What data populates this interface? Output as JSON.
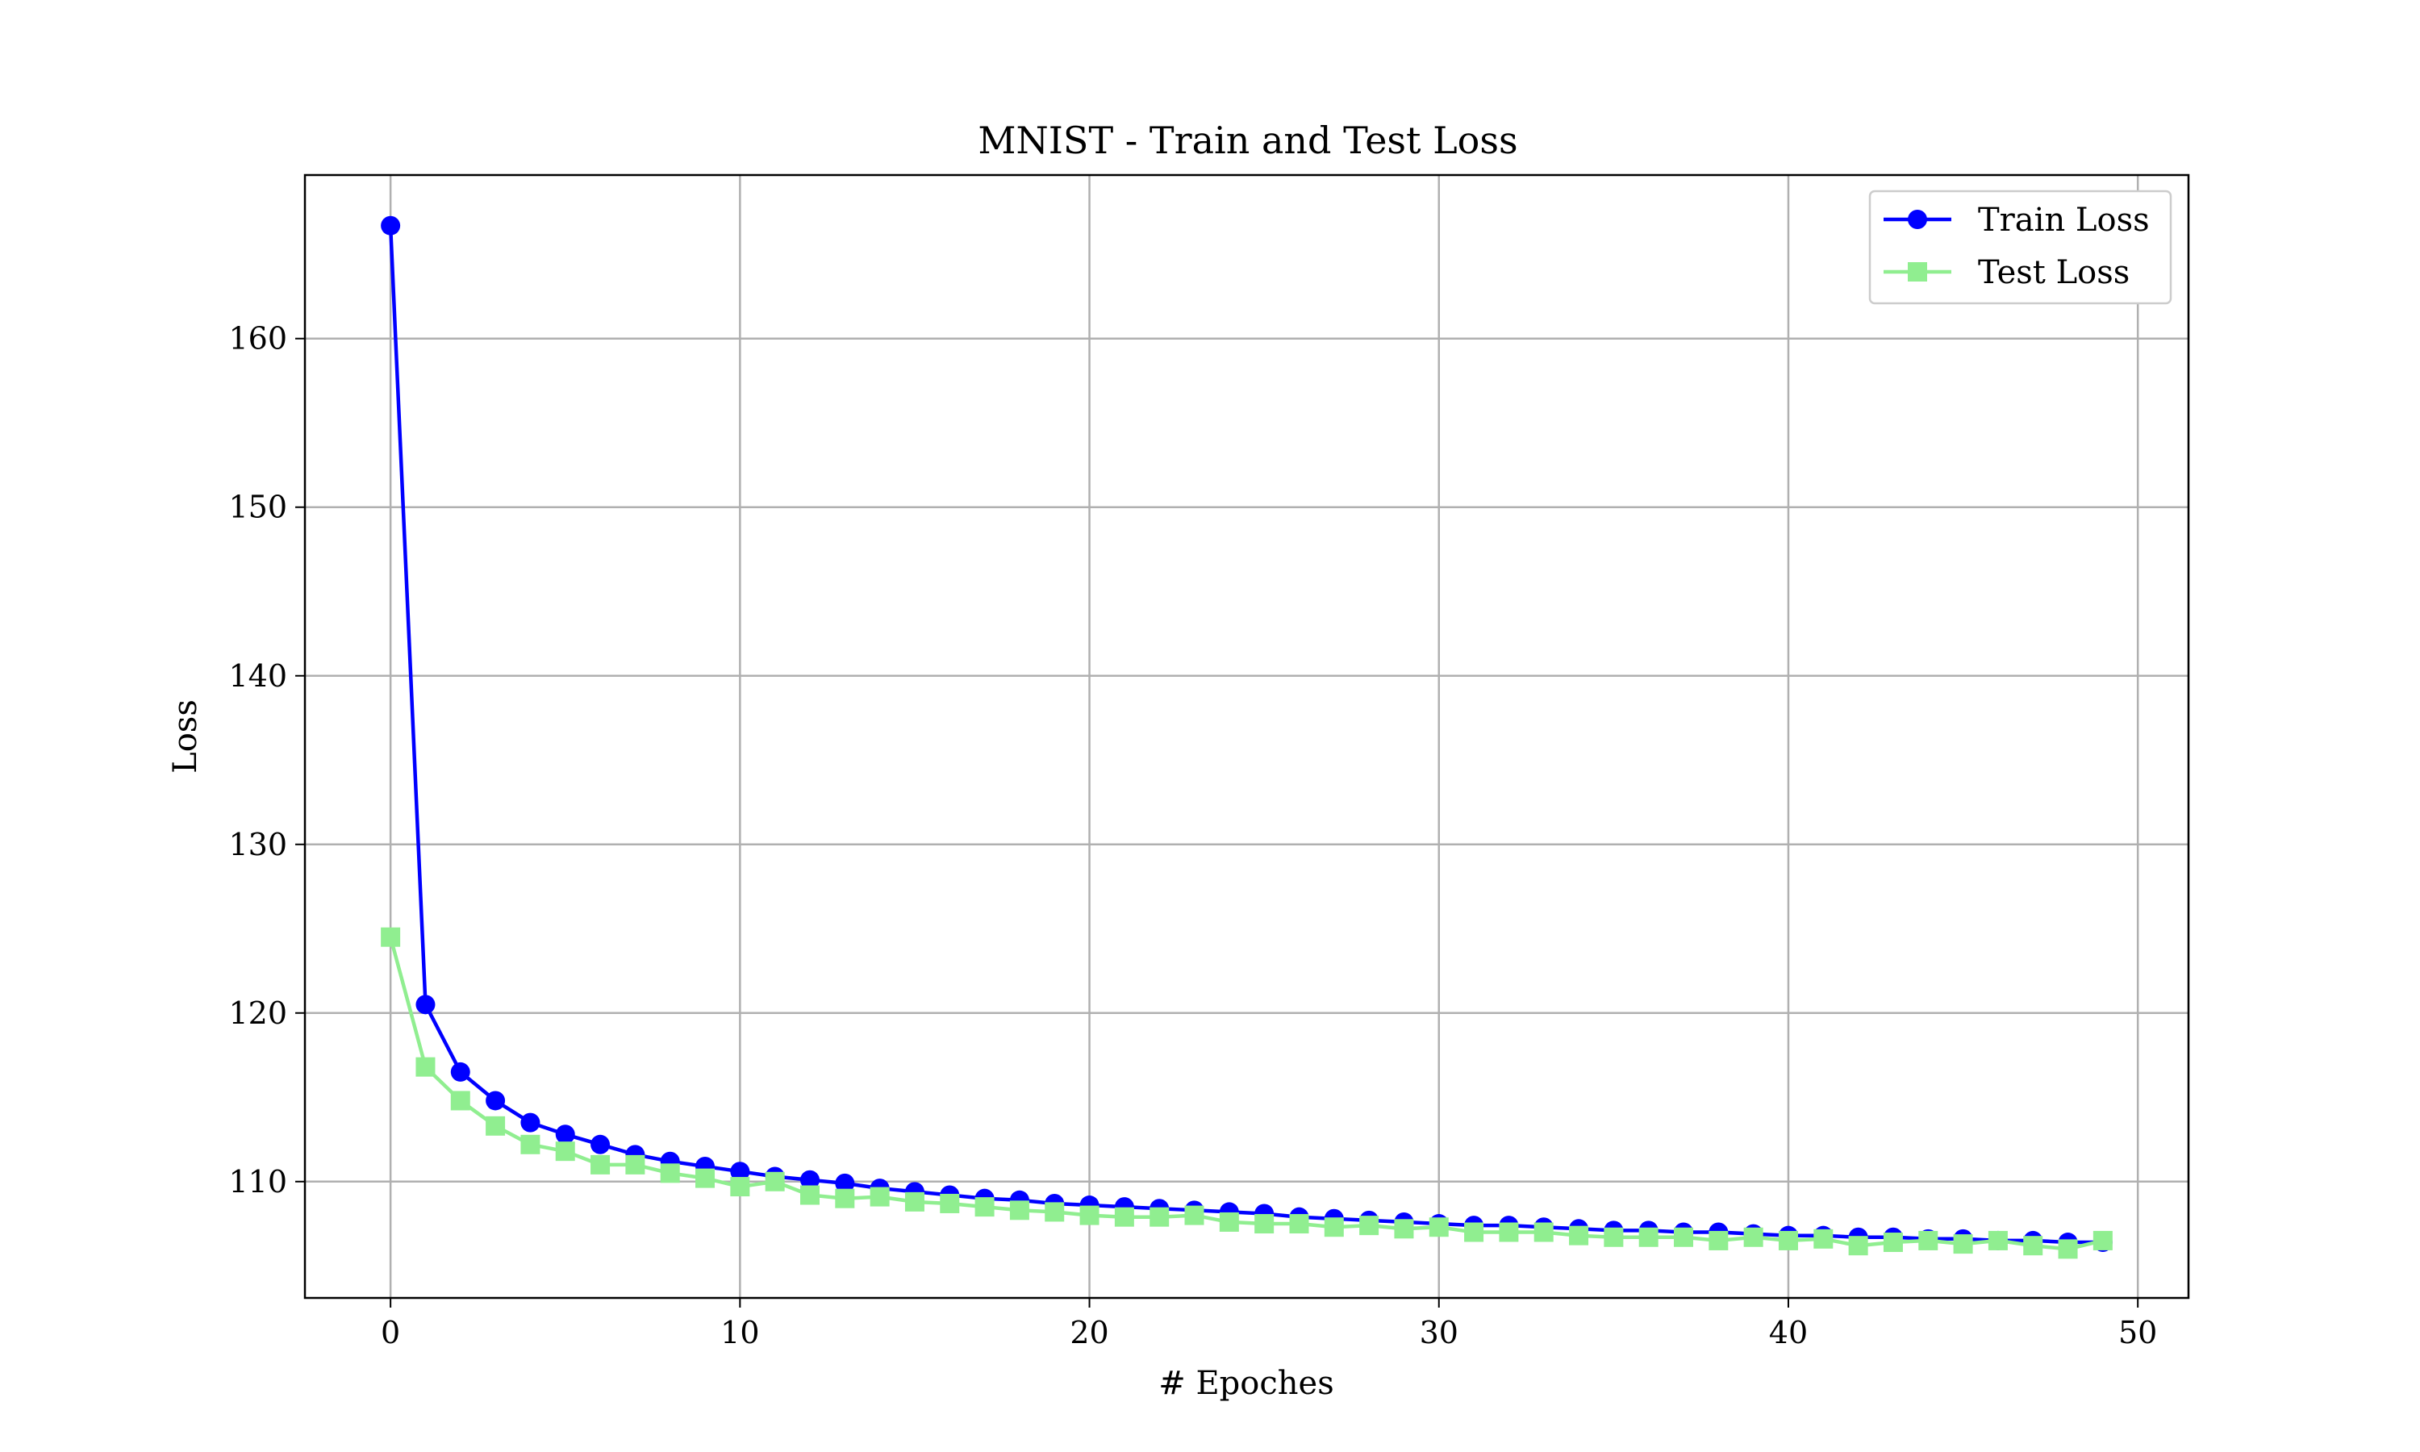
{
  "chart_data": {
    "type": "line",
    "title": "MNIST - Train and Test Loss",
    "xlabel": "# Epoches",
    "ylabel": "Loss",
    "xlim": [
      -2.45,
      51.45
    ],
    "ylim": [
      103.1,
      169.7
    ],
    "xticks": [
      0,
      10,
      20,
      30,
      40,
      50
    ],
    "yticks": [
      110,
      120,
      130,
      140,
      150,
      160
    ],
    "grid": true,
    "legend_position": "top-right",
    "x": [
      0,
      1,
      2,
      3,
      4,
      5,
      6,
      7,
      8,
      9,
      10,
      11,
      12,
      13,
      14,
      15,
      16,
      17,
      18,
      19,
      20,
      21,
      22,
      23,
      24,
      25,
      26,
      27,
      28,
      29,
      30,
      31,
      32,
      33,
      34,
      35,
      36,
      37,
      38,
      39,
      40,
      41,
      42,
      43,
      44,
      45,
      46,
      47,
      48,
      49
    ],
    "series": [
      {
        "name": "Train Loss",
        "color": "#0000ff",
        "marker": "circle",
        "values": [
          166.7,
          120.5,
          116.5,
          114.8,
          113.5,
          112.8,
          112.2,
          111.6,
          111.2,
          110.9,
          110.6,
          110.3,
          110.1,
          109.9,
          109.6,
          109.4,
          109.2,
          109.0,
          108.9,
          108.7,
          108.6,
          108.5,
          108.4,
          108.3,
          108.2,
          108.1,
          107.9,
          107.8,
          107.7,
          107.6,
          107.5,
          107.4,
          107.4,
          107.3,
          107.2,
          107.1,
          107.1,
          107.0,
          107.0,
          106.9,
          106.8,
          106.8,
          106.7,
          106.7,
          106.6,
          106.6,
          106.5,
          106.5,
          106.4,
          106.4
        ]
      },
      {
        "name": "Test Loss",
        "color": "#90ee90",
        "marker": "square",
        "values": [
          124.5,
          116.8,
          114.8,
          113.3,
          112.2,
          111.8,
          111.0,
          111.0,
          110.5,
          110.2,
          109.7,
          110.0,
          109.2,
          109.0,
          109.1,
          108.8,
          108.7,
          108.5,
          108.3,
          108.2,
          108.0,
          107.9,
          107.9,
          108.0,
          107.6,
          107.5,
          107.5,
          107.3,
          107.4,
          107.2,
          107.3,
          107.0,
          107.0,
          107.0,
          106.8,
          106.7,
          106.7,
          106.7,
          106.5,
          106.7,
          106.5,
          106.6,
          106.2,
          106.4,
          106.5,
          106.3,
          106.5,
          106.2,
          106.0,
          106.5
        ]
      }
    ]
  }
}
